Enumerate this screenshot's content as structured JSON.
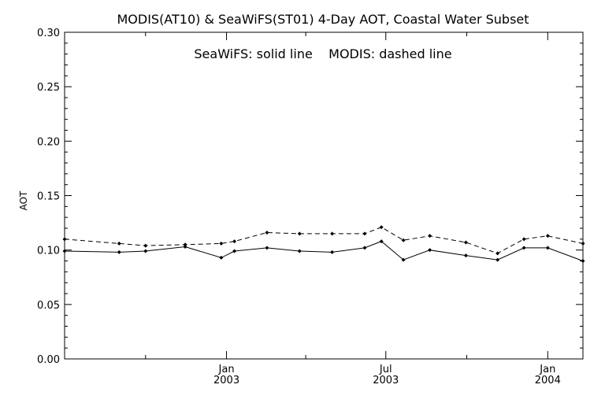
{
  "chart_data": {
    "type": "line",
    "title": "MODIS(AT10) & SeaWiFS(ST01) 4-Day AOT, Coastal Water Subset",
    "annotation": "SeaWiFS: solid line    MODIS: dashed line",
    "xlabel": "",
    "ylabel": "AOT",
    "ylim": [
      0.0,
      0.3
    ],
    "yticks": [
      "0.00",
      "0.05",
      "0.10",
      "0.15",
      "0.20",
      "0.25",
      "0.30"
    ],
    "xlim": [
      "2002-07-01",
      "2004-02-10"
    ],
    "xticks": [
      {
        "line1": "Jan",
        "line2": "2003",
        "date": "2003-01-01"
      },
      {
        "line1": "Jul",
        "line2": "2003",
        "date": "2003-07-01"
      },
      {
        "line1": "Jan",
        "line2": "2004",
        "date": "2004-01-01"
      }
    ],
    "grid": false,
    "series": [
      {
        "name": "SeaWiFS",
        "style": "solid",
        "points": [
          [
            "2002-07-01",
            0.099
          ],
          [
            "2002-09-01",
            0.098
          ],
          [
            "2002-10-01",
            0.099
          ],
          [
            "2002-11-15",
            0.103
          ],
          [
            "2002-12-26",
            0.093
          ],
          [
            "2003-01-10",
            0.099
          ],
          [
            "2003-02-16",
            0.102
          ],
          [
            "2003-03-25",
            0.099
          ],
          [
            "2003-05-01",
            0.098
          ],
          [
            "2003-06-07",
            0.102
          ],
          [
            "2003-06-26",
            0.108
          ],
          [
            "2003-07-21",
            0.091
          ],
          [
            "2003-08-20",
            0.1
          ],
          [
            "2003-09-30",
            0.095
          ],
          [
            "2003-11-05",
            0.091
          ],
          [
            "2003-12-05",
            0.102
          ],
          [
            "2004-01-01",
            0.102
          ],
          [
            "2004-02-10",
            0.09
          ]
        ]
      },
      {
        "name": "MODIS",
        "style": "dashed",
        "points": [
          [
            "2002-07-01",
            0.11
          ],
          [
            "2002-09-01",
            0.106
          ],
          [
            "2002-10-01",
            0.104
          ],
          [
            "2002-11-15",
            0.105
          ],
          [
            "2002-12-26",
            0.106
          ],
          [
            "2003-01-10",
            0.108
          ],
          [
            "2003-02-16",
            0.116
          ],
          [
            "2003-03-25",
            0.115
          ],
          [
            "2003-05-01",
            0.115
          ],
          [
            "2003-06-07",
            0.115
          ],
          [
            "2003-06-26",
            0.121
          ],
          [
            "2003-07-21",
            0.109
          ],
          [
            "2003-08-20",
            0.113
          ],
          [
            "2003-09-30",
            0.107
          ],
          [
            "2003-11-05",
            0.097
          ],
          [
            "2003-12-05",
            0.11
          ],
          [
            "2004-01-01",
            0.113
          ],
          [
            "2004-02-10",
            0.106
          ]
        ]
      }
    ]
  }
}
